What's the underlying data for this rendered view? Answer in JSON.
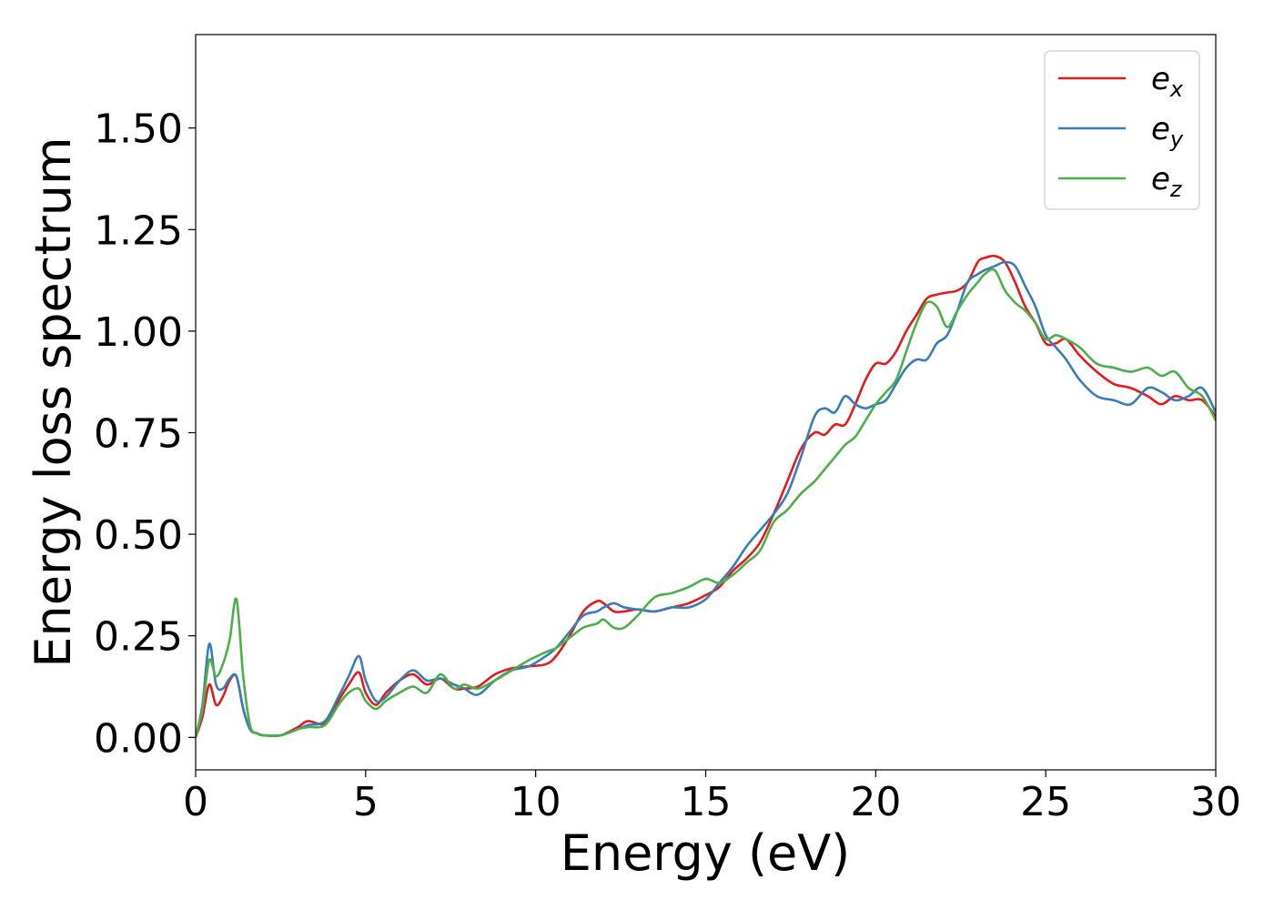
{
  "chart_data": {
    "type": "line",
    "title": "",
    "xlabel": "Energy (eV)",
    "ylabel": "Energy loss spectrum",
    "xlim": [
      0,
      30
    ],
    "ylim": [
      -0.08,
      1.73
    ],
    "xticks": [
      "0",
      "5",
      "10",
      "15",
      "20",
      "25",
      "30"
    ],
    "yticks": [
      "0.00",
      "0.25",
      "0.50",
      "0.75",
      "1.00",
      "1.25",
      "1.50"
    ],
    "xtick_values": [
      0,
      5,
      10,
      15,
      20,
      25,
      30
    ],
    "ytick_values": [
      0,
      0.25,
      0.5,
      0.75,
      1.0,
      1.25,
      1.5
    ],
    "grid": false,
    "legend_position": "top-right",
    "series": [
      {
        "name": "e",
        "subscript": "x",
        "color": "#e41a1c",
        "x": [
          0,
          0.2,
          0.4,
          0.6,
          0.8,
          1.0,
          1.2,
          1.4,
          1.6,
          1.8,
          2.0,
          2.5,
          3.0,
          3.3,
          3.8,
          4.2,
          4.5,
          4.8,
          5.0,
          5.3,
          5.6,
          6.0,
          6.4,
          6.8,
          7.2,
          7.6,
          7.9,
          8.3,
          8.8,
          9.3,
          9.8,
          10.3,
          10.6,
          11.0,
          11.4,
          11.8,
          12.0,
          12.3,
          12.6,
          13.0,
          13.5,
          14.0,
          14.5,
          15.0,
          15.4,
          15.8,
          16.2,
          16.6,
          17.0,
          17.4,
          17.8,
          18.2,
          18.5,
          18.8,
          19.1,
          19.4,
          19.7,
          20.0,
          20.3,
          20.6,
          20.9,
          21.2,
          21.5,
          21.8,
          22.1,
          22.4,
          22.7,
          23.0,
          23.2,
          23.5,
          23.8,
          24.1,
          24.4,
          24.7,
          25.0,
          25.3,
          25.6,
          26.0,
          26.5,
          27.0,
          27.5,
          28.0,
          28.4,
          28.8,
          29.2,
          29.6,
          30.0
        ],
        "y": [
          0.0,
          0.05,
          0.13,
          0.08,
          0.1,
          0.14,
          0.15,
          0.07,
          0.02,
          0.01,
          0.005,
          0.005,
          0.025,
          0.04,
          0.035,
          0.09,
          0.13,
          0.16,
          0.11,
          0.08,
          0.11,
          0.14,
          0.155,
          0.13,
          0.145,
          0.12,
          0.12,
          0.125,
          0.155,
          0.17,
          0.175,
          0.18,
          0.2,
          0.25,
          0.31,
          0.335,
          0.33,
          0.31,
          0.31,
          0.315,
          0.31,
          0.32,
          0.33,
          0.35,
          0.37,
          0.41,
          0.44,
          0.48,
          0.55,
          0.63,
          0.71,
          0.75,
          0.745,
          0.77,
          0.77,
          0.82,
          0.88,
          0.92,
          0.92,
          0.95,
          1.0,
          1.04,
          1.08,
          1.09,
          1.095,
          1.1,
          1.12,
          1.17,
          1.18,
          1.185,
          1.17,
          1.12,
          1.06,
          1.02,
          0.97,
          0.97,
          0.98,
          0.94,
          0.9,
          0.87,
          0.86,
          0.84,
          0.82,
          0.84,
          0.83,
          0.83,
          0.79
        ]
      },
      {
        "name": "e",
        "subscript": "y",
        "color": "#377eb8",
        "x": [
          0,
          0.2,
          0.4,
          0.6,
          0.8,
          1.0,
          1.2,
          1.4,
          1.6,
          1.8,
          2.0,
          2.5,
          3.0,
          3.3,
          3.8,
          4.2,
          4.5,
          4.8,
          5.0,
          5.3,
          5.6,
          6.0,
          6.4,
          6.8,
          7.2,
          7.6,
          7.9,
          8.3,
          8.8,
          9.3,
          9.8,
          10.3,
          10.6,
          11.0,
          11.4,
          11.8,
          12.0,
          12.3,
          12.6,
          13.0,
          13.5,
          14.0,
          14.5,
          15.0,
          15.4,
          15.8,
          16.2,
          16.6,
          17.0,
          17.4,
          17.8,
          18.2,
          18.5,
          18.8,
          19.1,
          19.4,
          19.7,
          20.0,
          20.3,
          20.6,
          20.9,
          21.2,
          21.5,
          21.8,
          22.1,
          22.4,
          22.7,
          23.0,
          23.2,
          23.5,
          23.8,
          24.1,
          24.4,
          24.7,
          25.0,
          25.3,
          25.6,
          26.0,
          26.5,
          27.0,
          27.5,
          28.0,
          28.4,
          28.8,
          29.2,
          29.6,
          30.0
        ],
        "y": [
          0.0,
          0.08,
          0.23,
          0.13,
          0.12,
          0.145,
          0.15,
          0.07,
          0.02,
          0.01,
          0.005,
          0.005,
          0.02,
          0.03,
          0.04,
          0.1,
          0.15,
          0.2,
          0.14,
          0.09,
          0.1,
          0.14,
          0.165,
          0.14,
          0.145,
          0.13,
          0.12,
          0.105,
          0.14,
          0.165,
          0.175,
          0.2,
          0.22,
          0.26,
          0.3,
          0.31,
          0.32,
          0.33,
          0.32,
          0.315,
          0.31,
          0.32,
          0.32,
          0.34,
          0.38,
          0.42,
          0.47,
          0.51,
          0.55,
          0.6,
          0.69,
          0.79,
          0.81,
          0.8,
          0.84,
          0.82,
          0.81,
          0.82,
          0.83,
          0.87,
          0.91,
          0.93,
          0.93,
          0.97,
          0.99,
          1.05,
          1.12,
          1.14,
          1.15,
          1.16,
          1.17,
          1.16,
          1.11,
          1.06,
          0.99,
          0.96,
          0.93,
          0.88,
          0.84,
          0.83,
          0.82,
          0.86,
          0.85,
          0.83,
          0.84,
          0.86,
          0.8
        ]
      },
      {
        "name": "e",
        "subscript": "z",
        "color": "#4daf4a",
        "x": [
          0,
          0.2,
          0.4,
          0.6,
          0.8,
          1.0,
          1.2,
          1.4,
          1.6,
          1.8,
          2.0,
          2.5,
          3.0,
          3.3,
          3.8,
          4.2,
          4.5,
          4.8,
          5.0,
          5.3,
          5.6,
          6.0,
          6.4,
          6.8,
          7.2,
          7.6,
          7.9,
          8.3,
          8.8,
          9.3,
          9.8,
          10.3,
          10.6,
          11.0,
          11.4,
          11.8,
          12.0,
          12.3,
          12.6,
          13.0,
          13.5,
          14.0,
          14.5,
          15.0,
          15.4,
          15.8,
          16.2,
          16.6,
          17.0,
          17.4,
          17.8,
          18.2,
          18.5,
          18.8,
          19.1,
          19.4,
          19.7,
          20.0,
          20.3,
          20.6,
          20.9,
          21.2,
          21.5,
          21.8,
          22.1,
          22.4,
          22.7,
          23.0,
          23.2,
          23.5,
          23.8,
          24.1,
          24.4,
          24.7,
          25.0,
          25.3,
          25.6,
          26.0,
          26.5,
          27.0,
          27.5,
          28.0,
          28.4,
          28.8,
          29.2,
          29.6,
          30.0
        ],
        "y": [
          0.0,
          0.07,
          0.19,
          0.15,
          0.18,
          0.24,
          0.34,
          0.15,
          0.03,
          0.01,
          0.005,
          0.005,
          0.02,
          0.025,
          0.03,
          0.08,
          0.11,
          0.12,
          0.09,
          0.07,
          0.09,
          0.11,
          0.125,
          0.11,
          0.155,
          0.12,
          0.13,
          0.12,
          0.14,
          0.165,
          0.19,
          0.21,
          0.22,
          0.245,
          0.27,
          0.28,
          0.29,
          0.27,
          0.27,
          0.3,
          0.345,
          0.355,
          0.37,
          0.39,
          0.38,
          0.4,
          0.43,
          0.46,
          0.53,
          0.56,
          0.6,
          0.63,
          0.66,
          0.69,
          0.72,
          0.74,
          0.78,
          0.82,
          0.85,
          0.88,
          0.95,
          1.02,
          1.07,
          1.06,
          1.01,
          1.05,
          1.09,
          1.12,
          1.14,
          1.15,
          1.1,
          1.07,
          1.05,
          1.02,
          0.98,
          0.99,
          0.98,
          0.96,
          0.92,
          0.91,
          0.9,
          0.91,
          0.89,
          0.9,
          0.86,
          0.84,
          0.78
        ]
      }
    ]
  }
}
